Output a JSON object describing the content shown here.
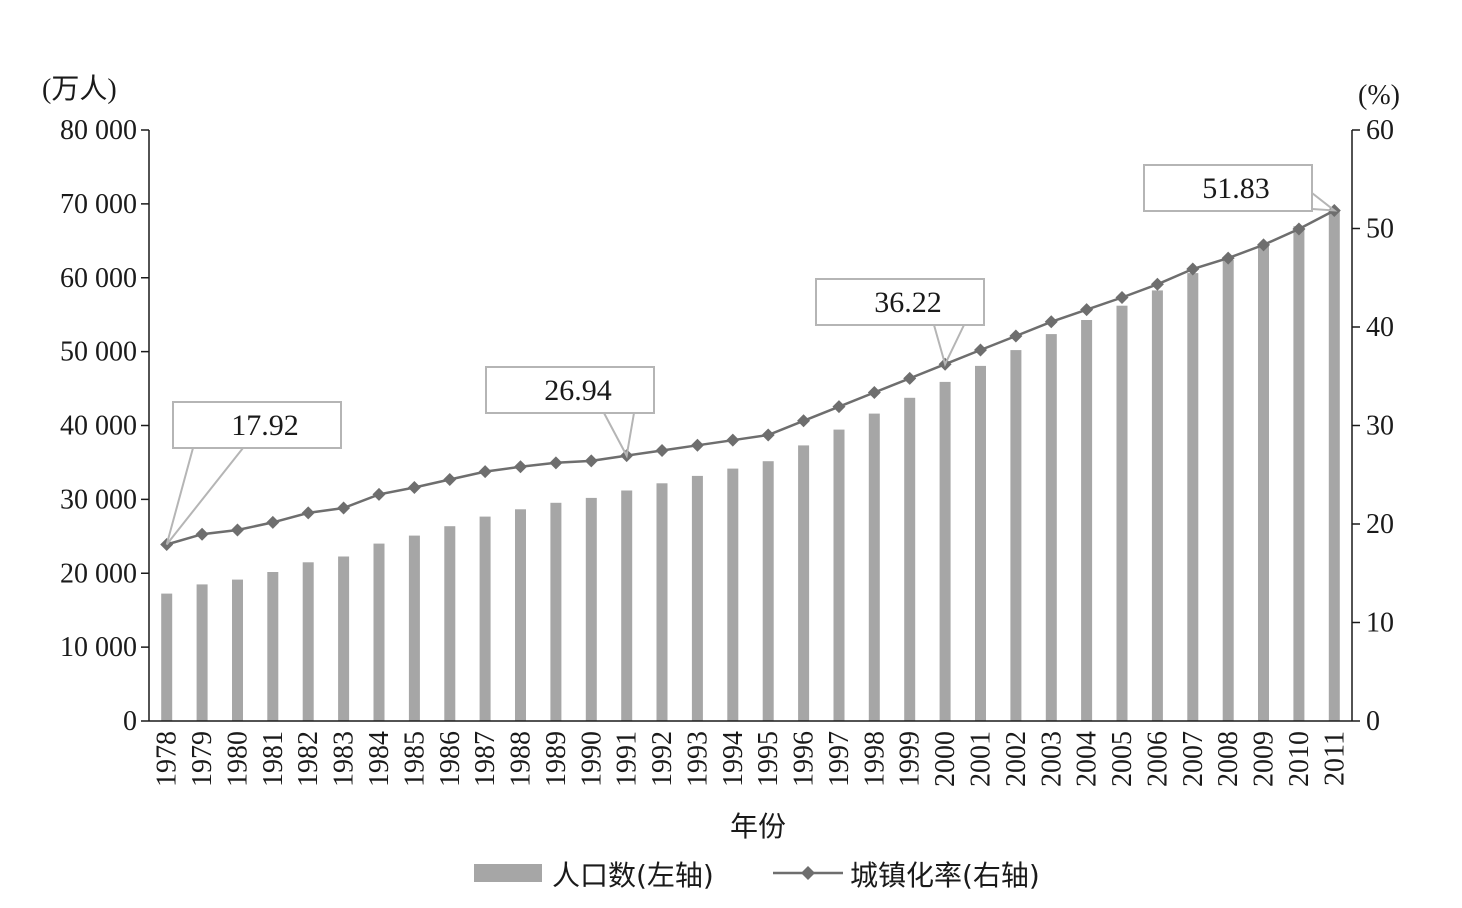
{
  "chart_data": {
    "type": "bar",
    "xlabel": "年份",
    "y_left_unit": "(万人)",
    "y_right_unit": "(%)",
    "y_left_ticks": [
      "0",
      "10 000",
      "20 000",
      "30 000",
      "40 000",
      "50 000",
      "60 000",
      "70 000",
      "80 000"
    ],
    "y_right_ticks": [
      "0",
      "10",
      "20",
      "30",
      "40",
      "50",
      "60"
    ],
    "ylim_left": [
      0,
      80000
    ],
    "ylim_right": [
      0,
      60
    ],
    "grid": false,
    "legend_position": "bottom",
    "categories": [
      "1978",
      "1979",
      "1980",
      "1981",
      "1982",
      "1983",
      "1984",
      "1985",
      "1986",
      "1987",
      "1988",
      "1989",
      "1990",
      "1991",
      "1992",
      "1993",
      "1994",
      "1995",
      "1996",
      "1997",
      "1998",
      "1999",
      "2000",
      "2001",
      "2002",
      "2003",
      "2004",
      "2005",
      "2006",
      "2007",
      "2008",
      "2009",
      "2010",
      "2011"
    ],
    "series": [
      {
        "name": "人口数(左轴)",
        "type": "bar",
        "axis": "left",
        "color": "#a6a6a6",
        "values": [
          17245,
          18495,
          19140,
          20171,
          21480,
          22274,
          24017,
          25094,
          26366,
          27674,
          28661,
          29540,
          30195,
          31203,
          32175,
          33173,
          34169,
          35174,
          37304,
          39449,
          41608,
          43748,
          45906,
          48064,
          50212,
          52376,
          54283,
          56212,
          58288,
          60633,
          62403,
          64512,
          66978,
          69079
        ]
      },
      {
        "name": "城镇化率(右轴)",
        "type": "line",
        "axis": "right",
        "color": "#6e6e6e",
        "values": [
          17.92,
          18.96,
          19.39,
          20.16,
          21.13,
          21.62,
          23.01,
          23.71,
          24.52,
          25.32,
          25.81,
          26.21,
          26.41,
          26.94,
          27.46,
          27.99,
          28.51,
          29.04,
          30.48,
          31.91,
          33.35,
          34.78,
          36.22,
          37.66,
          39.09,
          40.53,
          41.76,
          42.99,
          44.34,
          45.89,
          46.99,
          48.34,
          49.95,
          51.83
        ]
      }
    ],
    "annotations": [
      {
        "category": "1978",
        "text": "17.92"
      },
      {
        "category": "1991",
        "text": "26.94"
      },
      {
        "category": "2000",
        "text": "36.22"
      },
      {
        "category": "2011",
        "text": "51.83"
      }
    ]
  }
}
